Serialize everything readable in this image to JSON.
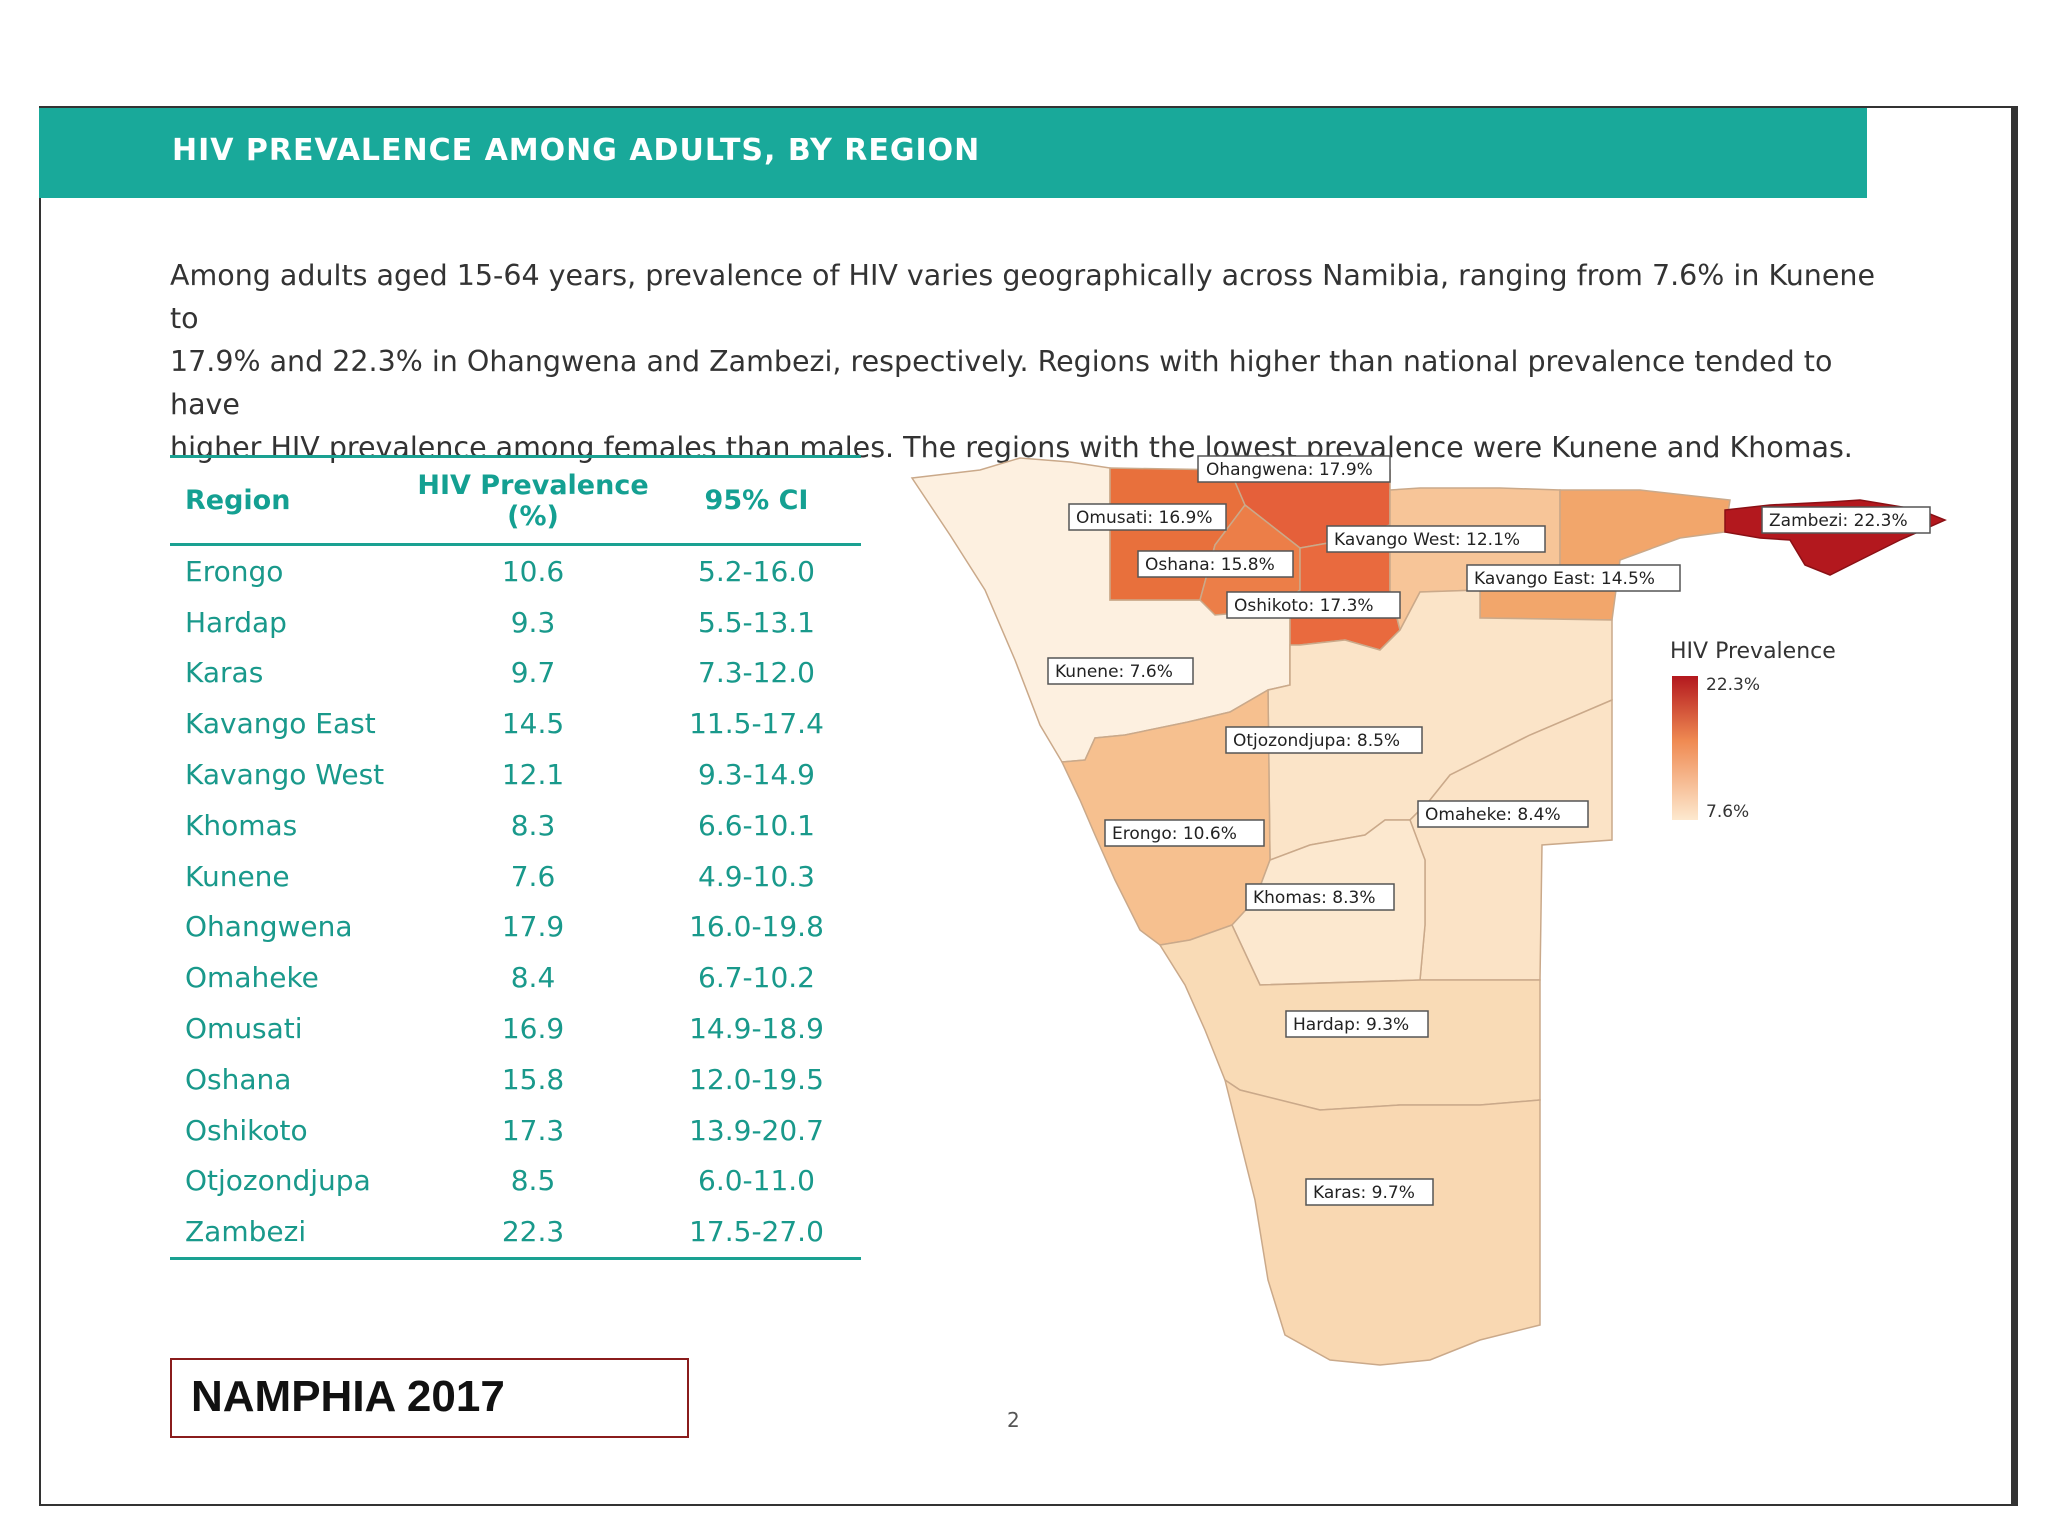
{
  "header": {
    "title": "HIV PREVALENCE AMONG ADULTS, BY REGION"
  },
  "intro": {
    "line1": "Among adults aged 15-64 years, prevalence of HIV varies geographically across Namibia, ranging from 7.6% in Kunene to",
    "line2": "17.9% and 22.3% in Ohangwena and Zambezi, respectively. Regions with higher than national prevalence tended to have",
    "line3": "higher HIV prevalence among females than males. The regions with the lowest prevalence were Kunene and Khomas."
  },
  "table": {
    "headers": {
      "region": "Region",
      "prevalence_line1": "HIV Prevalence",
      "prevalence_line2": "(%)",
      "ci": "95% CI"
    },
    "rows": [
      {
        "region": "Erongo",
        "prevalence": "10.6",
        "ci": "5.2-16.0"
      },
      {
        "region": "Hardap",
        "prevalence": "9.3",
        "ci": "5.5-13.1"
      },
      {
        "region": "Karas",
        "prevalence": "9.7",
        "ci": "7.3-12.0"
      },
      {
        "region": "Kavango East",
        "prevalence": "14.5",
        "ci": "11.5-17.4"
      },
      {
        "region": "Kavango West",
        "prevalence": "12.1",
        "ci": "9.3-14.9"
      },
      {
        "region": "Khomas",
        "prevalence": "8.3",
        "ci": "6.6-10.1"
      },
      {
        "region": "Kunene",
        "prevalence": "7.6",
        "ci": "4.9-10.3"
      },
      {
        "region": "Ohangwena",
        "prevalence": "17.9",
        "ci": "16.0-19.8"
      },
      {
        "region": "Omaheke",
        "prevalence": "8.4",
        "ci": "6.7-10.2"
      },
      {
        "region": "Omusati",
        "prevalence": "16.9",
        "ci": "14.9-18.9"
      },
      {
        "region": "Oshana",
        "prevalence": "15.8",
        "ci": "12.0-19.5"
      },
      {
        "region": "Oshikoto",
        "prevalence": "17.3",
        "ci": "13.9-20.7"
      },
      {
        "region": "Otjozondjupa",
        "prevalence": "8.5",
        "ci": "6.0-11.0"
      },
      {
        "region": "Zambezi",
        "prevalence": "22.3",
        "ci": "17.5-27.0"
      }
    ]
  },
  "map": {
    "labels": {
      "ohangwena": "Ohangwena: 17.9%",
      "omusati": "Omusati: 16.9%",
      "kavango_west": "Kavango West: 12.1%",
      "zambezi": "Zambezi: 22.3%",
      "oshana": "Oshana: 15.8%",
      "kavango_east": "Kavango East: 14.5%",
      "oshikoto": "Oshikoto: 17.3%",
      "kunene": "Kunene: 7.6%",
      "otjozondjupa": "Otjozondjupa: 8.5%",
      "omaheke": "Omaheke: 8.4%",
      "erongo": "Erongo: 10.6%",
      "khomas": "Khomas: 8.3%",
      "hardap": "Hardap: 9.3%",
      "karas": "Karas: 9.7%"
    },
    "legend": {
      "title": "HIV Prevalence",
      "max": "22.3%",
      "min": "7.6%"
    },
    "colors": {
      "low": "#fbe3c6",
      "mid": "#f0a463",
      "high": "#b3181e"
    }
  },
  "footer": {
    "source": "NAMPHIA 2017",
    "page": "2"
  }
}
